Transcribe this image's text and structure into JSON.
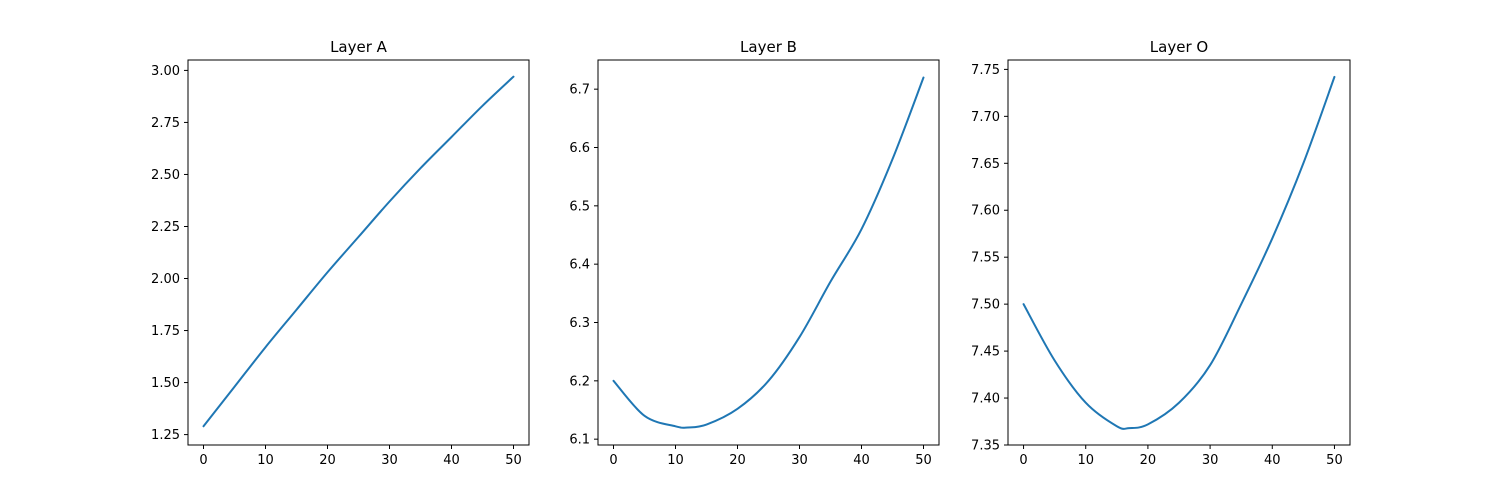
{
  "chart_data": [
    {
      "type": "line",
      "title": "Layer A",
      "xlim": [
        -2.5,
        52.5
      ],
      "ylim": [
        1.2,
        3.05
      ],
      "xticks": [
        0,
        10,
        20,
        30,
        40,
        50
      ],
      "yticks": [
        1.25,
        1.5,
        1.75,
        2.0,
        2.25,
        2.5,
        2.75,
        3.0
      ],
      "ytick_labels": [
        "1.25",
        "1.50",
        "1.75",
        "2.00",
        "2.25",
        "2.50",
        "2.75",
        "3.00"
      ],
      "grid": false,
      "series": [
        {
          "color": "#1f77b4",
          "x": [
            0,
            5,
            10,
            15,
            20,
            25,
            30,
            35,
            40,
            45,
            50
          ],
          "y": [
            1.29,
            1.48,
            1.67,
            1.85,
            2.03,
            2.2,
            2.37,
            2.53,
            2.68,
            2.83,
            2.97
          ]
        }
      ]
    },
    {
      "type": "line",
      "title": "Layer B",
      "xlim": [
        -2.5,
        52.5
      ],
      "ylim": [
        6.09,
        6.75
      ],
      "xticks": [
        0,
        10,
        20,
        30,
        40,
        50
      ],
      "yticks": [
        6.1,
        6.2,
        6.3,
        6.4,
        6.5,
        6.6,
        6.7
      ],
      "ytick_labels": [
        "6.1",
        "6.2",
        "6.3",
        "6.4",
        "6.5",
        "6.6",
        "6.7"
      ],
      "grid": false,
      "series": [
        {
          "color": "#1f77b4",
          "x": [
            0,
            5,
            10,
            12,
            15,
            20,
            25,
            30,
            35,
            40,
            45,
            50
          ],
          "y": [
            6.2,
            6.14,
            6.122,
            6.12,
            6.125,
            6.152,
            6.2,
            6.275,
            6.37,
            6.46,
            6.58,
            6.72
          ]
        }
      ]
    },
    {
      "type": "line",
      "title": "Layer O",
      "xlim": [
        -2.5,
        52.5
      ],
      "ylim": [
        7.35,
        7.76
      ],
      "xticks": [
        0,
        10,
        20,
        30,
        40,
        50
      ],
      "yticks": [
        7.35,
        7.4,
        7.45,
        7.5,
        7.55,
        7.6,
        7.65,
        7.7,
        7.75
      ],
      "ytick_labels": [
        "7.35",
        "7.40",
        "7.45",
        "7.50",
        "7.55",
        "7.60",
        "7.65",
        "7.70",
        "7.75"
      ],
      "grid": false,
      "series": [
        {
          "color": "#1f77b4",
          "x": [
            0,
            5,
            10,
            15,
            17,
            20,
            25,
            30,
            35,
            40,
            45,
            50
          ],
          "y": [
            7.5,
            7.44,
            7.395,
            7.37,
            7.368,
            7.372,
            7.395,
            7.435,
            7.5,
            7.57,
            7.65,
            7.742
          ]
        }
      ]
    }
  ]
}
